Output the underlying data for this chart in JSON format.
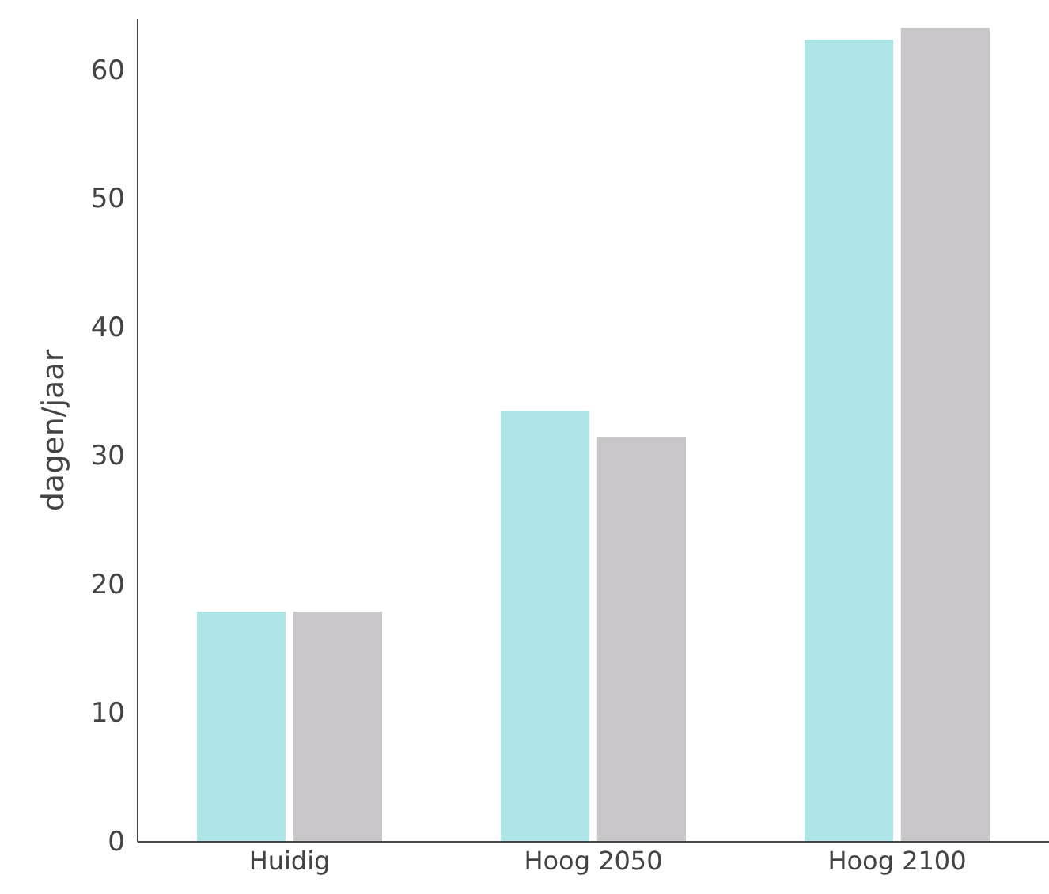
{
  "chart_data": {
    "type": "bar",
    "ylabel": "dagen/jaar",
    "categories": [
      "Huidig",
      "Hoog 2050",
      "Hoog 2100"
    ],
    "series": [
      {
        "color": "#ade5e6",
        "values": [
          17.9,
          33.5,
          62.4
        ]
      },
      {
        "color": "#c8c6c8",
        "values": [
          17.9,
          31.5,
          63.3
        ]
      }
    ],
    "ylim": [
      0,
      64
    ],
    "yticks": [
      0,
      10,
      20,
      30,
      40,
      50,
      60
    ],
    "grid": false
  }
}
